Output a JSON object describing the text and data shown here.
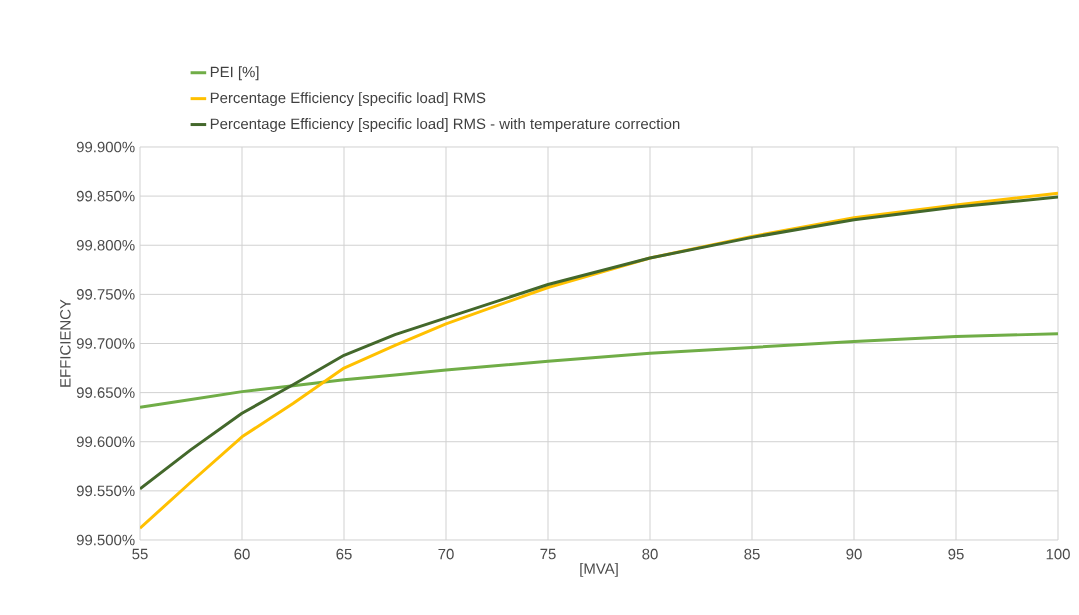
{
  "chart_data": {
    "type": "line",
    "xlabel": "[MVA]",
    "ylabel": "EFFICIENCY",
    "x": [
      55,
      57.5,
      60,
      62.5,
      65,
      67.5,
      70,
      75,
      80,
      85,
      90,
      95,
      100
    ],
    "series": [
      {
        "name": "PEI [%]",
        "color": "#70ad47",
        "values": [
          99.635,
          99.643,
          99.651,
          99.657,
          99.663,
          99.668,
          99.673,
          99.682,
          99.69,
          99.696,
          99.702,
          99.707,
          99.71
        ]
      },
      {
        "name": "Percentage Efficiency [specific load] RMS",
        "color": "#ffc000",
        "values": [
          99.512,
          99.559,
          99.605,
          99.639,
          99.675,
          99.698,
          99.72,
          99.757,
          99.787,
          99.809,
          99.828,
          99.841,
          99.853
        ]
      },
      {
        "name": "Percentage Efficiency [specific load] RMS - with temperature correction",
        "color": "#43682b",
        "values": [
          99.552,
          99.592,
          99.629,
          99.658,
          99.688,
          99.709,
          99.726,
          99.76,
          99.787,
          99.808,
          99.826,
          99.839,
          99.849
        ]
      }
    ],
    "xlim": [
      55,
      100
    ],
    "ylim": [
      99.5,
      99.9
    ],
    "xticks": [
      55,
      60,
      65,
      70,
      75,
      80,
      85,
      90,
      95,
      100
    ],
    "yticks": [
      {
        "value": 99.5,
        "label": "99.500%"
      },
      {
        "value": 99.55,
        "label": "99.550%"
      },
      {
        "value": 99.6,
        "label": "99.600%"
      },
      {
        "value": 99.65,
        "label": "99.650%"
      },
      {
        "value": 99.7,
        "label": "99.700%"
      },
      {
        "value": 99.75,
        "label": "99.750%"
      },
      {
        "value": 99.8,
        "label": "99.800%"
      },
      {
        "value": 99.85,
        "label": "99.850%"
      },
      {
        "value": 99.9,
        "label": "99.900%"
      }
    ],
    "grid": true,
    "legend": "top",
    "marker": "none",
    "line_style": "solid"
  }
}
